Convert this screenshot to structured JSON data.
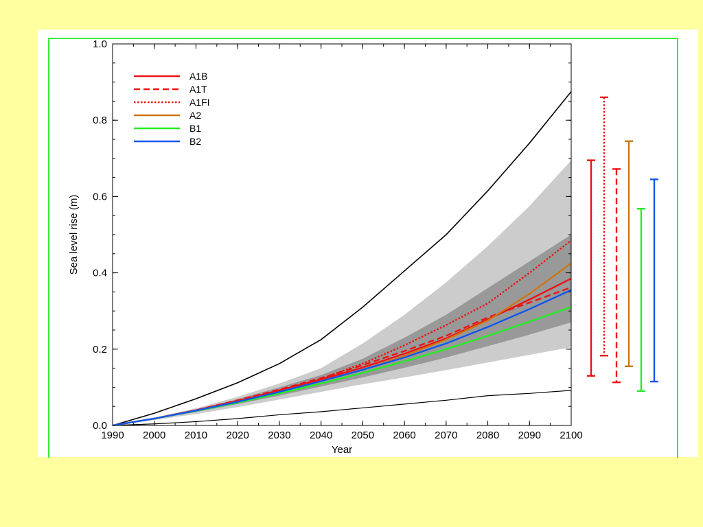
{
  "chart_data": {
    "type": "line",
    "title": "",
    "xlabel": "Year",
    "ylabel": "Sea level rise (m)",
    "xlim": [
      1990,
      2100
    ],
    "ylim": [
      0.0,
      1.0
    ],
    "xticks": [
      "1990",
      "2000",
      "2010",
      "2020",
      "2030",
      "2040",
      "2050",
      "2060",
      "2070",
      "2080",
      "2090",
      "2100"
    ],
    "yticks": [
      "0.0",
      "0.2",
      "0.4",
      "0.6",
      "0.8",
      "1.0"
    ],
    "grid": false,
    "legend_position": "top-left",
    "x": [
      1990,
      2000,
      2010,
      2020,
      2030,
      2040,
      2050,
      2060,
      2070,
      2080,
      2090,
      2100
    ],
    "series": [
      {
        "name": "A1B",
        "color": "#ee1111",
        "dash": "solid",
        "values": [
          0.0,
          0.018,
          0.04,
          0.064,
          0.092,
          0.12,
          0.152,
          0.188,
          0.228,
          0.278,
          0.33,
          0.385
        ]
      },
      {
        "name": "A1T",
        "color": "#ee1111",
        "dash": "dashed",
        "values": [
          0.0,
          0.018,
          0.04,
          0.066,
          0.094,
          0.124,
          0.158,
          0.195,
          0.235,
          0.283,
          0.322,
          0.362
        ]
      },
      {
        "name": "A1FI",
        "color": "#ee1111",
        "dash": "dotted",
        "values": [
          0.0,
          0.018,
          0.04,
          0.064,
          0.092,
          0.122,
          0.162,
          0.21,
          0.263,
          0.32,
          0.4,
          0.485
        ]
      },
      {
        "name": "A2",
        "color": "#cc7711",
        "dash": "solid",
        "values": [
          0.0,
          0.018,
          0.039,
          0.062,
          0.088,
          0.116,
          0.146,
          0.182,
          0.225,
          0.275,
          0.345,
          0.425
        ]
      },
      {
        "name": "B1",
        "color": "#22ee22",
        "dash": "solid",
        "values": [
          0.0,
          0.018,
          0.038,
          0.06,
          0.084,
          0.11,
          0.138,
          0.168,
          0.2,
          0.235,
          0.272,
          0.31
        ]
      },
      {
        "name": "B2",
        "color": "#1155ee",
        "dash": "solid",
        "values": [
          0.0,
          0.018,
          0.039,
          0.062,
          0.088,
          0.116,
          0.146,
          0.178,
          0.215,
          0.258,
          0.305,
          0.355
        ]
      }
    ],
    "bounds": [
      {
        "role": "upper",
        "color": "#000000",
        "values": [
          0.0,
          0.032,
          0.07,
          0.112,
          0.162,
          0.225,
          0.31,
          0.405,
          0.5,
          0.615,
          0.74,
          0.875
        ]
      },
      {
        "role": "lower",
        "color": "#000000",
        "values": [
          0.0,
          0.004,
          0.01,
          0.018,
          0.028,
          0.036,
          0.046,
          0.056,
          0.066,
          0.078,
          0.084,
          0.092
        ]
      }
    ],
    "bands": [
      {
        "shade": "light",
        "color": "#cccccc",
        "upper": [
          0.0,
          0.02,
          0.045,
          0.075,
          0.11,
          0.15,
          0.215,
          0.29,
          0.375,
          0.47,
          0.575,
          0.695
        ],
        "lower": [
          0.0,
          0.014,
          0.03,
          0.048,
          0.068,
          0.088,
          0.108,
          0.126,
          0.145,
          0.165,
          0.185,
          0.205
        ]
      },
      {
        "shade": "dark",
        "color": "#999999",
        "upper": [
          0.0,
          0.019,
          0.042,
          0.069,
          0.1,
          0.132,
          0.175,
          0.23,
          0.29,
          0.36,
          0.43,
          0.5
        ],
        "lower": [
          0.0,
          0.016,
          0.035,
          0.056,
          0.078,
          0.102,
          0.126,
          0.151,
          0.178,
          0.208,
          0.238,
          0.27
        ]
      }
    ],
    "ranges_2100": [
      {
        "name": "A1B",
        "color": "#ee1111",
        "dash": "solid",
        "low": 0.13,
        "high": 0.695
      },
      {
        "name": "A1FI",
        "color": "#ee1111",
        "dash": "dotted",
        "low": 0.183,
        "high": 0.86
      },
      {
        "name": "A1T",
        "color": "#ee1111",
        "dash": "dashed",
        "low": 0.113,
        "high": 0.672
      },
      {
        "name": "A2",
        "color": "#cc7711",
        "dash": "solid",
        "low": 0.155,
        "high": 0.745
      },
      {
        "name": "B1",
        "color": "#22ee22",
        "dash": "solid",
        "low": 0.09,
        "high": 0.568
      },
      {
        "name": "B2",
        "color": "#1155ee",
        "dash": "solid",
        "low": 0.115,
        "high": 0.645
      }
    ]
  }
}
